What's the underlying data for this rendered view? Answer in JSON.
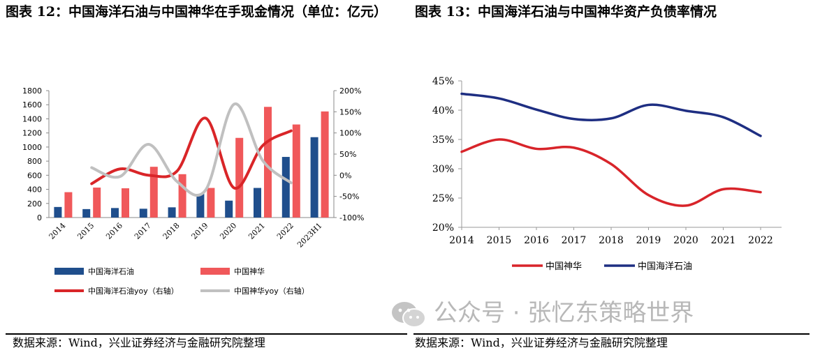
{
  "figures": [
    {
      "title": "图表 12：中国海洋石油与中国神华在手现金情况（单位：亿元）",
      "source": "数据来源：Wind，兴业证券经济与金融研究院整理"
    },
    {
      "title": "图表 13：中国海洋石油与中国神华资产负债率情况",
      "source": "数据来源：Wind，兴业证券经济与金融研究院整理"
    }
  ],
  "watermark": "公众号 · 张忆东策略世界",
  "colors": {
    "cnooc_bar": "#1F4E8C",
    "shenhua_bar": "#F0585A",
    "cnooc_line": "#D92528",
    "shenhua_line": "#C0C0C0",
    "debt_cnooc": "#1E2E82",
    "debt_shenhua": "#D8242A"
  },
  "chart_data": [
    {
      "type": "bar",
      "categories": [
        "2014",
        "2015",
        "2016",
        "2017",
        "2018",
        "2019",
        "2020",
        "2021",
        "2022",
        "2023H1"
      ],
      "series": [
        {
          "name": "中国海洋石油",
          "kind": "bar",
          "axis": "left",
          "values": [
            150,
            120,
            135,
            125,
            145,
            335,
            240,
            420,
            860,
            1140
          ]
        },
        {
          "name": "中国神华",
          "kind": "bar",
          "axis": "left",
          "values": [
            360,
            425,
            415,
            720,
            615,
            420,
            1130,
            1570,
            1320,
            1505
          ]
        },
        {
          "name": "中国海洋石油yoy（右轴）",
          "kind": "line",
          "axis": "right",
          "values": [
            null,
            -20,
            15,
            0,
            10,
            135,
            -30,
            70,
            105,
            null
          ]
        },
        {
          "name": "中国神华yoy（右轴）",
          "kind": "line",
          "axis": "right",
          "values": [
            null,
            18,
            -3,
            73,
            -15,
            -35,
            168,
            35,
            -18,
            null
          ]
        }
      ],
      "ylim": [
        0,
        1800
      ],
      "yticks": [
        "0",
        "200",
        "400",
        "600",
        "800",
        "1000",
        "1200",
        "1400",
        "1600",
        "1800"
      ],
      "ylim_right": [
        -100,
        200
      ],
      "yticks_right": [
        "-100%",
        "-50%",
        "0%",
        "50%",
        "100%",
        "150%",
        "200%"
      ],
      "legend_position": "bottom",
      "title": "",
      "xlabel": "",
      "ylabel": ""
    },
    {
      "type": "line",
      "x": [
        "2014",
        "2015",
        "2016",
        "2017",
        "2018",
        "2019",
        "2020",
        "2021",
        "2022"
      ],
      "series": [
        {
          "name": "中国神华",
          "values": [
            32.9,
            35.0,
            33.4,
            33.6,
            30.8,
            25.5,
            23.7,
            26.5,
            26.0
          ]
        },
        {
          "name": "中国海洋石油",
          "values": [
            42.8,
            42.0,
            40.1,
            38.5,
            38.6,
            40.9,
            39.9,
            38.8,
            35.6
          ]
        }
      ],
      "ylim": [
        20,
        45
      ],
      "yticks": [
        "20%",
        "25%",
        "30%",
        "35%",
        "40%",
        "45%"
      ],
      "legend_position": "bottom",
      "title": "",
      "xlabel": "",
      "ylabel": ""
    }
  ]
}
